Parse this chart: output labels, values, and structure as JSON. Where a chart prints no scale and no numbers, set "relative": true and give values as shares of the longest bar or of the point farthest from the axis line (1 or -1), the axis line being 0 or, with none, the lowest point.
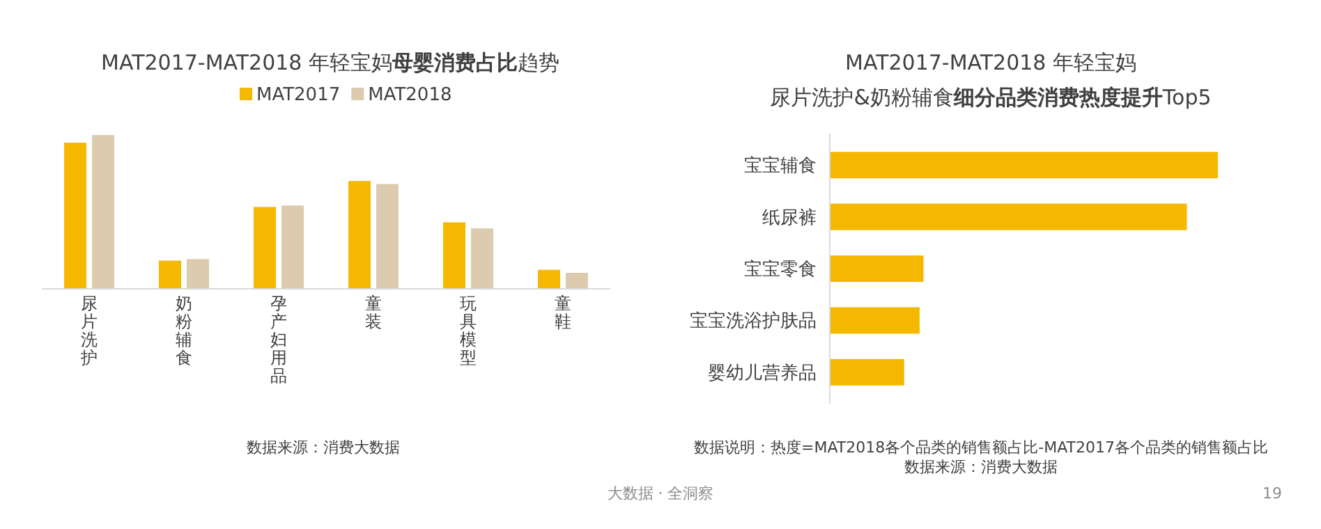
{
  "chart_data": [
    {
      "type": "bar",
      "title": "MAT2017-MAT2018 年轻宝妈**母婴消费占比**趋势",
      "relative": true,
      "legend": "top",
      "categories": [
        "尿片洗护",
        "奶粉辅食",
        "孕产妇用品",
        "童装",
        "玩具模型",
        "童鞋"
      ],
      "series": [
        {
          "name": "MAT2017",
          "color": "#f5b800",
          "values": [
            0.95,
            0.18,
            0.53,
            0.7,
            0.43,
            0.12
          ]
        },
        {
          "name": "MAT2018",
          "color": "#dccbae",
          "values": [
            1,
            0.19,
            0.54,
            0.68,
            0.39,
            0.1
          ]
        }
      ],
      "annotations": [
        "数据来源：消费大数据"
      ]
    },
    {
      "type": "bar",
      "orientation": "horizontal",
      "relative": true,
      "title": "MAT2017-MAT2018  年轻宝妈",
      "subtitle": "尿片洗护&奶粉辅食**细分品类消费热度提升**Top5",
      "categories": [
        "宝宝辅食",
        "纸尿裤",
        "宝宝零食",
        "宝宝洗浴护肤品",
        "婴幼儿营养品"
      ],
      "color": "#f5b800",
      "values": [
        1,
        0.92,
        0.24,
        0.23,
        0.19
      ],
      "annotations": [
        "数据说明：热度=MAT2018各个品类的销售额占比-MAT2017各个品类的销售额占比",
        "数据来源：消费大数据",
        "大数据 · 全洞察",
        "19"
      ]
    }
  ]
}
